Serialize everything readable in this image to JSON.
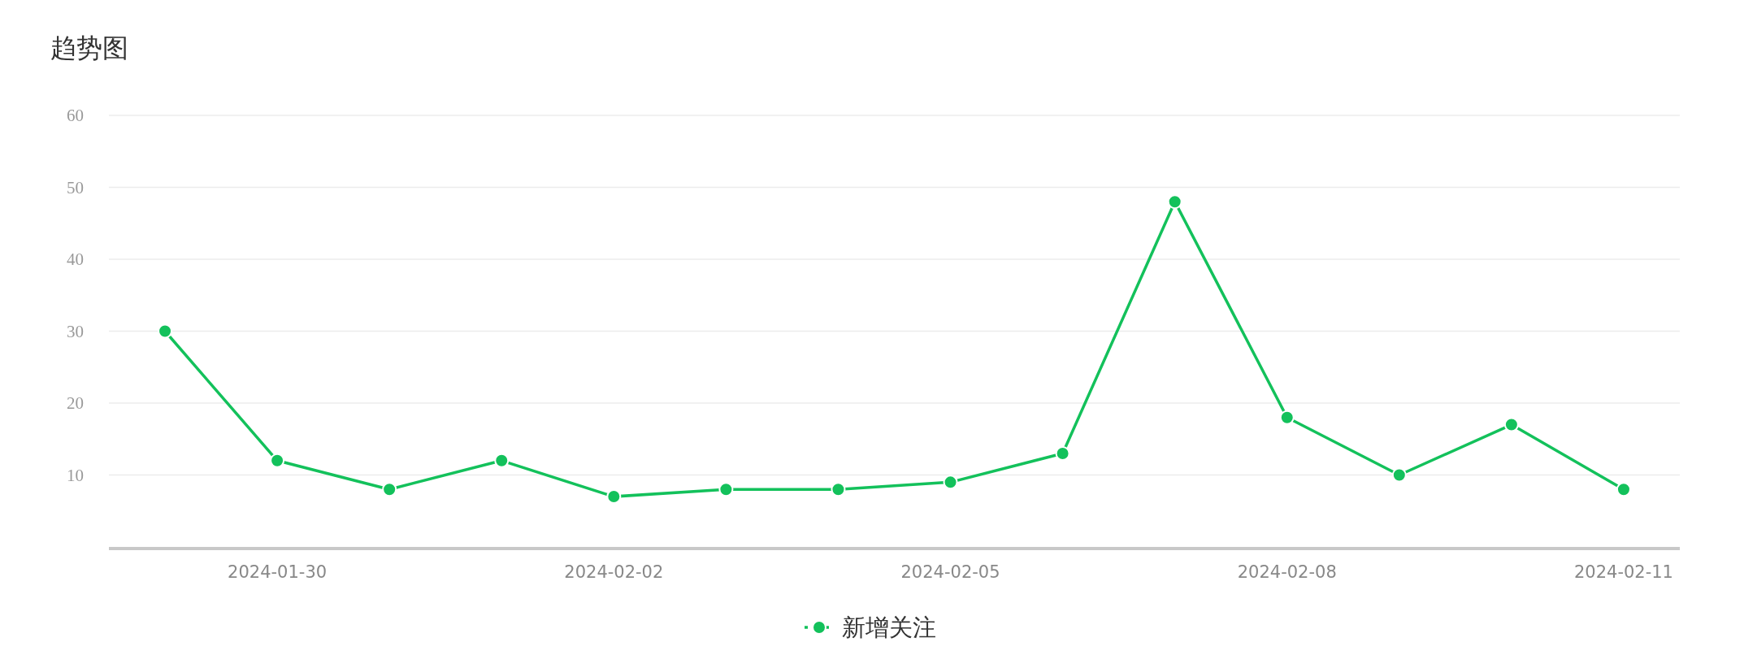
{
  "chart_data": {
    "type": "line",
    "title": "趋势图",
    "categories": [
      null,
      "2024-01-30",
      null,
      null,
      "2024-02-02",
      null,
      null,
      "2024-02-05",
      null,
      null,
      "2024-02-08",
      null,
      null,
      "2024-02-11"
    ],
    "series": [
      {
        "name": "新增关注",
        "color": "#13c15b",
        "values": [
          30,
          12,
          8,
          12,
          7,
          8,
          8,
          9,
          13,
          48,
          18,
          10,
          17,
          8
        ]
      }
    ],
    "ylim": [
      0,
      60
    ],
    "yticks": [
      10,
      20,
      30,
      40,
      50,
      60
    ],
    "grid": "y",
    "legend": "bottom",
    "marker": "circle",
    "line_style": "solid"
  }
}
